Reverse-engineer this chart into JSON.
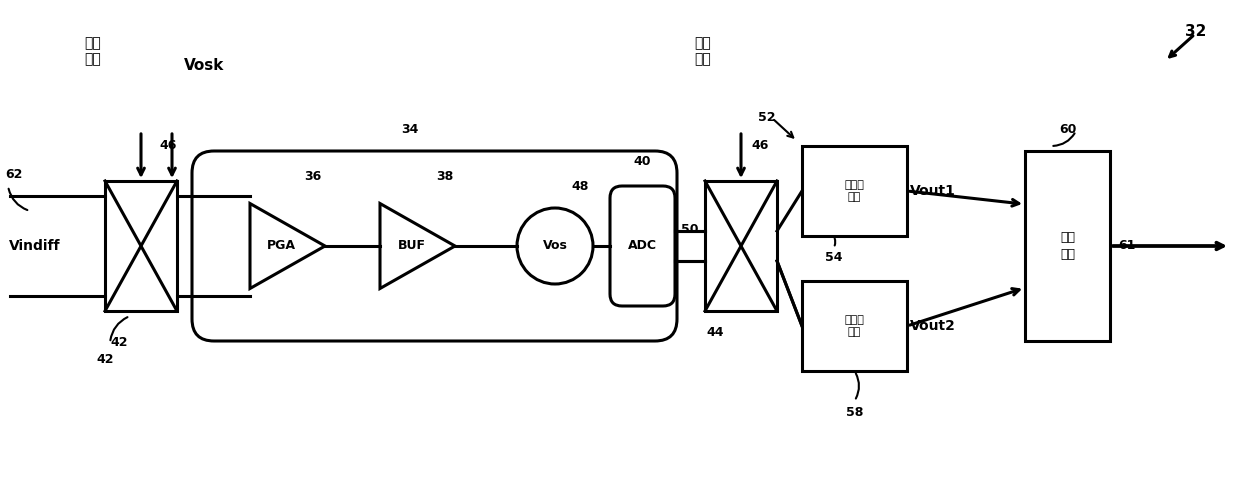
{
  "bg_color": "#ffffff",
  "line_color": "#000000",
  "lw": 2.2,
  "fig_width": 12.4,
  "fig_height": 4.96,
  "label_32": "32",
  "label_34": "34",
  "label_36": "36",
  "label_38": "38",
  "label_40": "40",
  "label_42": "42",
  "label_44": "44",
  "label_46": "46",
  "label_46b": "46",
  "label_48": "48",
  "label_50": "50",
  "label_52": "52",
  "label_54": "54",
  "label_58": "58",
  "label_60": "60",
  "label_61": "61",
  "label_62": "62",
  "text_chopwave": "斩波\n信号",
  "text_vosk": "Vosk",
  "text_vindiff": "Vindiff",
  "text_pga": "PGA",
  "text_buf": "BUF",
  "text_vos": "Vos",
  "text_adc": "ADC",
  "text_df1": "数字滤\n波器",
  "text_df2": "数字滤\n波器",
  "text_vout1": "Vout1",
  "text_vout2": "Vout2",
  "text_logic": "路辑\n正关",
  "text_chopwave2": "斩波\n信号"
}
